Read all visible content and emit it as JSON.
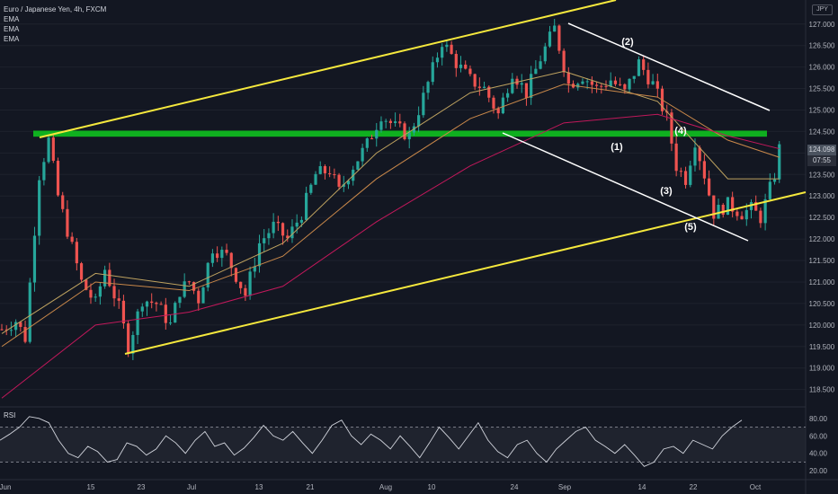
{
  "legend": {
    "symbol": "Euro / Japanese Yen, 4h, FXCM",
    "ema1": "EMA",
    "ema2": "EMA",
    "ema3": "EMA"
  },
  "currency_badge": "JPY",
  "price_tag": {
    "price": "124.098",
    "countdown": "07:55"
  },
  "rsi_label": "RSI",
  "colors": {
    "background": "#131722",
    "up": "#26a69a",
    "down": "#ef5350",
    "ema_fast": "#bfa360",
    "ema_mid": "#c9884a",
    "ema_slow": "#c2185b",
    "channel": "#f5e83d",
    "resistance_zone": "#0fb01f",
    "wedge": "#ffffff",
    "rsi": "#d1d4dc"
  },
  "chart_data": {
    "type": "candlestick",
    "title": "Euro / Japanese Yen, 4h, FXCM",
    "x_tick_labels": [
      "Jun",
      "15",
      "23",
      "Jul",
      "13",
      "21",
      "Aug",
      "10",
      "24",
      "Sep",
      "14",
      "22",
      "Oct"
    ],
    "y_tick_labels": [
      "127.000",
      "126.500",
      "126.000",
      "125.500",
      "125.000",
      "124.500",
      "124.000",
      "123.500",
      "123.000",
      "122.500",
      "122.000",
      "121.500",
      "121.000",
      "120.500",
      "120.000",
      "119.500",
      "119.000",
      "118.500"
    ],
    "ylim": [
      118.2,
      127.35
    ],
    "close_path": [
      [
        0,
        119.9
      ],
      [
        3,
        120.1
      ],
      [
        5,
        119.7
      ],
      [
        8,
        123.5
      ],
      [
        10,
        124.3
      ],
      [
        12,
        123.0
      ],
      [
        15,
        121.8
      ],
      [
        17,
        121.0
      ],
      [
        20,
        120.5
      ],
      [
        22,
        121.3
      ],
      [
        25,
        120.4
      ],
      [
        27,
        119.5
      ],
      [
        30,
        120.6
      ],
      [
        33,
        120.5
      ],
      [
        36,
        120.0
      ],
      [
        38,
        120.8
      ],
      [
        40,
        121.0
      ],
      [
        42,
        120.6
      ],
      [
        45,
        121.8
      ],
      [
        48,
        121.6
      ],
      [
        52,
        120.7
      ],
      [
        55,
        121.9
      ],
      [
        58,
        122.3
      ],
      [
        61,
        122.0
      ],
      [
        64,
        122.6
      ],
      [
        67,
        123.5
      ],
      [
        70,
        123.6
      ],
      [
        72,
        123.1
      ],
      [
        75,
        123.7
      ],
      [
        78,
        124.2
      ],
      [
        81,
        124.9
      ],
      [
        84,
        124.6
      ],
      [
        87,
        124.4
      ],
      [
        90,
        125.3
      ],
      [
        94,
        126.6
      ],
      [
        97,
        126.1
      ],
      [
        100,
        125.7
      ],
      [
        103,
        125.5
      ],
      [
        106,
        124.9
      ],
      [
        109,
        125.9
      ],
      [
        112,
        125.4
      ],
      [
        115,
        126.2
      ],
      [
        118,
        126.9
      ],
      [
        121,
        125.6
      ],
      [
        124,
        125.8
      ],
      [
        127,
        125.5
      ],
      [
        130,
        125.7
      ],
      [
        133,
        125.4
      ],
      [
        136,
        126.1
      ],
      [
        139,
        125.6
      ],
      [
        142,
        124.8
      ],
      [
        144,
        123.7
      ],
      [
        146,
        123.4
      ],
      [
        148,
        124.3
      ],
      [
        150,
        123.5
      ],
      [
        152,
        122.6
      ],
      [
        155,
        122.8
      ],
      [
        158,
        122.6
      ],
      [
        160,
        122.7
      ],
      [
        162,
        122.5
      ],
      [
        165,
        123.5
      ],
      [
        166,
        124.1
      ]
    ],
    "series": [
      {
        "name": "EMA",
        "type": "line",
        "values": [
          [
            0,
            119.8
          ],
          [
            20,
            121.2
          ],
          [
            40,
            120.9
          ],
          [
            60,
            121.9
          ],
          [
            80,
            124.0
          ],
          [
            100,
            125.4
          ],
          [
            120,
            125.9
          ],
          [
            140,
            125.2
          ],
          [
            155,
            123.4
          ],
          [
            166,
            123.4
          ]
        ]
      },
      {
        "name": "EMA",
        "type": "line",
        "values": [
          [
            0,
            119.5
          ],
          [
            20,
            121.0
          ],
          [
            40,
            120.8
          ],
          [
            60,
            121.6
          ],
          [
            80,
            123.4
          ],
          [
            100,
            124.8
          ],
          [
            120,
            125.6
          ],
          [
            140,
            125.3
          ],
          [
            155,
            124.3
          ],
          [
            166,
            123.9
          ]
        ]
      },
      {
        "name": "EMA",
        "type": "line",
        "values": [
          [
            0,
            118.3
          ],
          [
            20,
            120.0
          ],
          [
            40,
            120.3
          ],
          [
            60,
            120.9
          ],
          [
            80,
            122.4
          ],
          [
            100,
            123.7
          ],
          [
            120,
            124.7
          ],
          [
            140,
            124.9
          ],
          [
            155,
            124.4
          ],
          [
            166,
            124.1
          ]
        ]
      }
    ],
    "rsi": {
      "label": "RSI",
      "y_tick_labels": [
        "80.00",
        "60.00",
        "40.00",
        "20.00"
      ],
      "ylim": [
        12,
        88
      ],
      "upper_band": 70,
      "lower_band": 30,
      "values": [
        55,
        62,
        70,
        82,
        80,
        75,
        55,
        40,
        35,
        48,
        42,
        30,
        33,
        52,
        48,
        38,
        45,
        60,
        52,
        40,
        55,
        65,
        48,
        52,
        38,
        46,
        58,
        72,
        60,
        55,
        65,
        52,
        40,
        55,
        72,
        78,
        60,
        50,
        62,
        55,
        45,
        60,
        48,
        35,
        52,
        70,
        58,
        45,
        60,
        75,
        55,
        42,
        35,
        50,
        55,
        40,
        30,
        45,
        55,
        65,
        70,
        55,
        48,
        40,
        50,
        38,
        25,
        30,
        45,
        48,
        40,
        55,
        50,
        45,
        60,
        70,
        78
      ]
    },
    "annotations": [
      "(1)",
      "(2)",
      "(3)",
      "(4)",
      "(5)"
    ]
  }
}
